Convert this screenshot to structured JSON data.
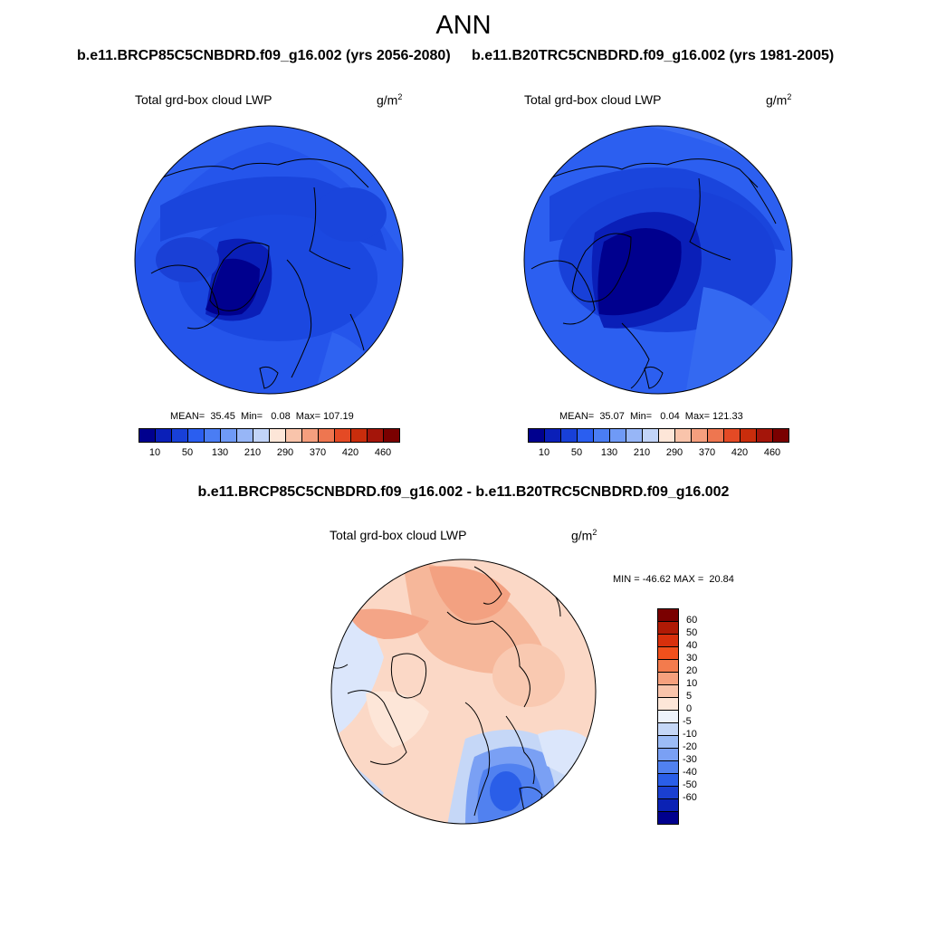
{
  "header": {
    "title": "ANN",
    "case1_title": "b.e11.BRCP85C5CNBDRD.f09_g16.002 (yrs 2056-2080)",
    "case2_title": "b.e11.B20TRC5CNBDRD.f09_g16.002 (yrs 1981-2005)",
    "diff_title": "b.e11.BRCP85C5CNBDRD.f09_g16.002 - b.e11.B20TRC5CNBDRD.f09_g16.002"
  },
  "panels": {
    "left": {
      "label": "Total grd-box cloud LWP",
      "units_base": "g/m",
      "units_exp": "2",
      "stats": "MEAN=  35.45  Min=   0.08  Max= 107.19"
    },
    "right": {
      "label": "Total grd-box cloud LWP",
      "units_base": "g/m",
      "units_exp": "2",
      "stats": "MEAN=  35.07  Min=   0.04  Max= 121.33"
    },
    "diff": {
      "label": "Total grd-box cloud LWP",
      "units_base": "g/m",
      "units_exp": "2",
      "stats": "MIN = -46.62 MAX =  20.84"
    }
  },
  "colorbar_abs": {
    "colors": [
      "#00008e",
      "#0a1fb8",
      "#1840d8",
      "#2a5ef0",
      "#4a7df4",
      "#6f9af6",
      "#97b6f7",
      "#c2d4f8",
      "#fde6d8",
      "#f9c4ab",
      "#f59f7e",
      "#ee7650",
      "#e44a25",
      "#c92d0c",
      "#a4150a",
      "#7a0000"
    ],
    "labels": [
      "10",
      "50",
      "130",
      "210",
      "290",
      "370",
      "420",
      "460"
    ]
  },
  "colorbar_diff": {
    "colors": [
      "#7a0000",
      "#b01a05",
      "#d8300c",
      "#f0501c",
      "#f37b4d",
      "#f6a07d",
      "#f9c4ab",
      "#fde6d8",
      "#eef3fb",
      "#c5d7f7",
      "#9cbcf6",
      "#7aa0f4",
      "#5181f0",
      "#2a5ee8",
      "#1a3fd0",
      "#0b22b4",
      "#00008e"
    ],
    "labels": [
      "60",
      "50",
      "40",
      "30",
      "20",
      "10",
      "5",
      "0",
      "-5",
      "-10",
      "-20",
      "-30",
      "-40",
      "-50",
      "-60"
    ]
  }
}
